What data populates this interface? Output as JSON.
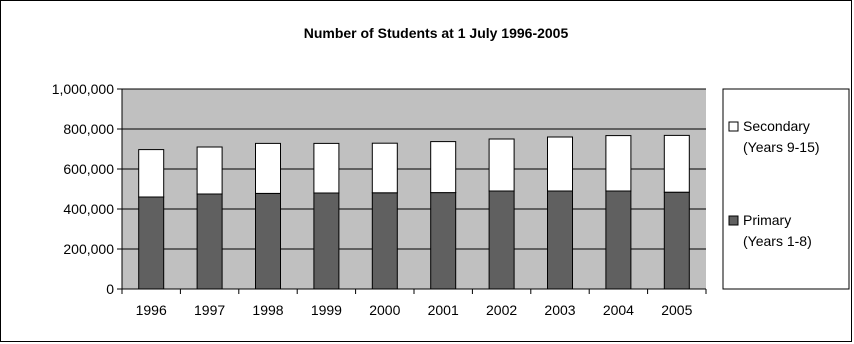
{
  "chart_data": {
    "type": "bar",
    "stacked": true,
    "title": "Number of Students at 1 July 1996-2005",
    "xlabel": "",
    "ylabel": "",
    "categories": [
      "1996",
      "1997",
      "1998",
      "1999",
      "2000",
      "2001",
      "2002",
      "2003",
      "2004",
      "2005"
    ],
    "ylim": [
      0,
      1000000
    ],
    "yticks": [
      0,
      200000,
      400000,
      600000,
      800000,
      1000000
    ],
    "ytick_labels": [
      "0",
      "200,000",
      "400,000",
      "600,000",
      "800,000",
      "1,000,000"
    ],
    "grid": true,
    "legend_position": "right",
    "plot_background": "#c0c0c0",
    "series": [
      {
        "name": "Primary (Years 1-8)",
        "legend_lines": [
          "Primary",
          "(Years 1-8)"
        ],
        "color": "#606060",
        "values": [
          460000,
          475000,
          478000,
          480000,
          481000,
          482000,
          490000,
          490000,
          490000,
          484000
        ]
      },
      {
        "name": "Secondary (Years 9-15)",
        "legend_lines": [
          "Secondary",
          "(Years 9-15)"
        ],
        "color": "#ffffff",
        "values": [
          237000,
          235000,
          250000,
          248000,
          248000,
          255000,
          260000,
          270000,
          277000,
          284000
        ]
      }
    ]
  }
}
